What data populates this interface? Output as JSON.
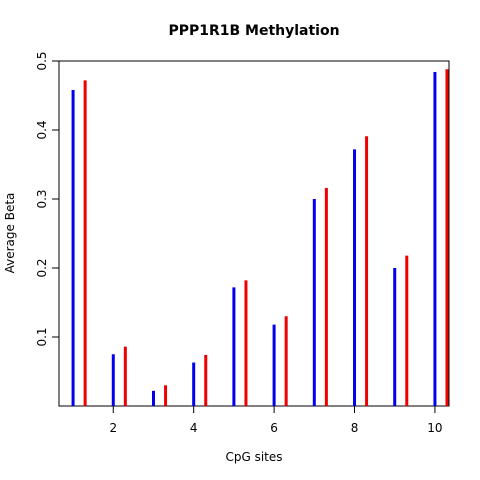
{
  "chart_data": {
    "type": "bar",
    "title": "PPP1R1B Methylation",
    "xlabel": "CpG sites",
    "ylabel": "Average Beta",
    "x": [
      1,
      2,
      3,
      4,
      5,
      6,
      7,
      8,
      9,
      10
    ],
    "series": [
      {
        "color": "#0000ee",
        "values": [
          0.458,
          0.075,
          0.022,
          0.063,
          0.172,
          0.118,
          0.3,
          0.372,
          0.2,
          0.484
        ]
      },
      {
        "color": "#ee0000",
        "values": [
          0.472,
          0.086,
          0.03,
          0.074,
          0.182,
          0.13,
          0.316,
          0.391,
          0.218,
          0.488
        ]
      }
    ],
    "series_offset_x": 0.3,
    "xlim": [
      0.65,
      10.35
    ],
    "ylim": [
      0.0,
      0.5
    ],
    "xticks": [
      2,
      4,
      6,
      8,
      10
    ],
    "xtick_labels": [
      "2",
      "4",
      "6",
      "8",
      "10"
    ],
    "yticks": [
      0.1,
      0.2,
      0.3,
      0.4,
      0.5
    ],
    "ytick_labels": [
      "0.1",
      "0.2",
      "0.3",
      "0.4",
      "0.5"
    ],
    "grid": false,
    "legend": "none"
  }
}
